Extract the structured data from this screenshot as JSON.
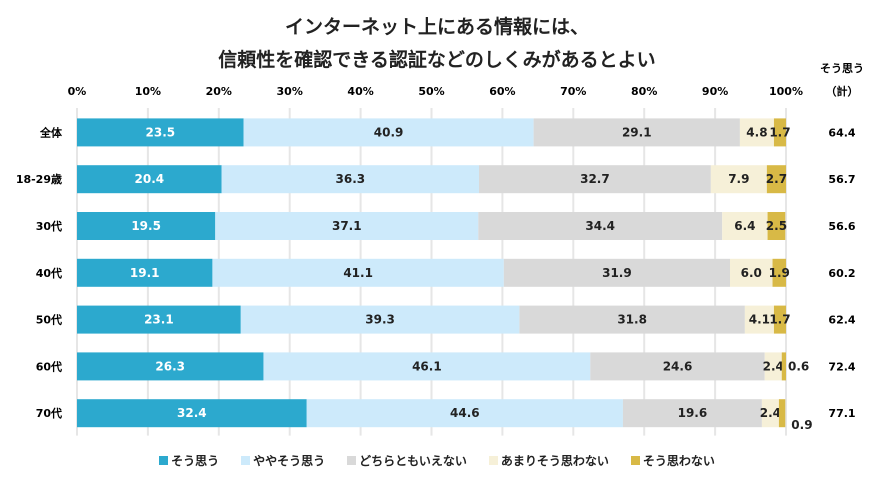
{
  "chart_data": {
    "type": "bar",
    "orientation": "horizontal",
    "stacked": "percent",
    "title_lines": [
      "インターネット上にある情報には、",
      "信頼性を確認できる認証などのしくみがあるとよい"
    ],
    "xlim": [
      0,
      100
    ],
    "x_ticks": [
      "0%",
      "10%",
      "20%",
      "30%",
      "40%",
      "50%",
      "60%",
      "70%",
      "80%",
      "90%",
      "100%"
    ],
    "grid": true,
    "legend_position": "bottom",
    "categories": [
      "全体",
      "18-29歳",
      "30代",
      "40代",
      "50代",
      "60代",
      "70代"
    ],
    "series": [
      {
        "name": "そう思う",
        "color": "#2ca9ce",
        "values": [
          23.5,
          20.4,
          19.5,
          19.1,
          23.1,
          26.3,
          32.4
        ]
      },
      {
        "name": "ややそう思う",
        "color": "#cdeafb",
        "values": [
          40.9,
          36.3,
          37.1,
          41.1,
          39.3,
          46.1,
          44.6
        ]
      },
      {
        "name": "どちらともいえない",
        "color": "#d9d9d9",
        "values": [
          29.1,
          32.7,
          34.4,
          31.9,
          31.8,
          24.6,
          19.6
        ]
      },
      {
        "name": "あまりそう思わない",
        "color": "#f6f0d8",
        "values": [
          4.8,
          7.9,
          6.4,
          6.0,
          4.1,
          2.4,
          2.4
        ]
      },
      {
        "name": "そう思わない",
        "color": "#d8b946",
        "values": [
          1.7,
          2.7,
          2.5,
          1.9,
          1.7,
          0.6,
          0.9
        ]
      }
    ],
    "total_header": [
      "そう思う",
      "（計）"
    ],
    "totals": [
      "64.4",
      "56.7",
      "56.6",
      "60.2",
      "62.4",
      "72.4",
      "77.1"
    ]
  }
}
